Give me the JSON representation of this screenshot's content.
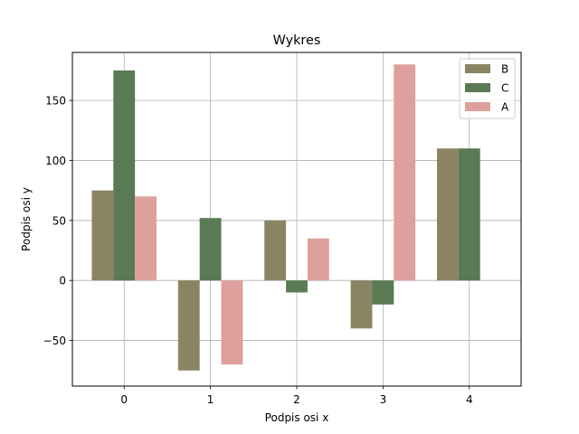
{
  "chart_data": {
    "type": "bar",
    "title": "Wykres",
    "xlabel": "Podpis osi x",
    "ylabel": "Podpis osi y",
    "categories": [
      "0",
      "1",
      "2",
      "3",
      "4"
    ],
    "series": [
      {
        "name": "B",
        "color": "#8b8463",
        "values": [
          75,
          -75,
          50,
          -40,
          110
        ]
      },
      {
        "name": "C",
        "color": "#5a7a53",
        "values": [
          175,
          52,
          -10,
          -20,
          110
        ]
      },
      {
        "name": "A",
        "color": "#dda09c",
        "values": [
          70,
          null,
          35,
          180,
          null
        ],
        "note_cat1": -70
      }
    ],
    "values_A": [
      70,
      -70,
      35,
      180,
      0
    ],
    "ylim": [
      -88,
      190
    ],
    "xlim": [
      -0.6,
      4.6
    ],
    "yticks": [
      -50,
      0,
      50,
      100,
      150
    ],
    "ytick_labels": [
      "−50",
      "0",
      "50",
      "100",
      "150"
    ],
    "grid": true,
    "legend": "top-right"
  }
}
